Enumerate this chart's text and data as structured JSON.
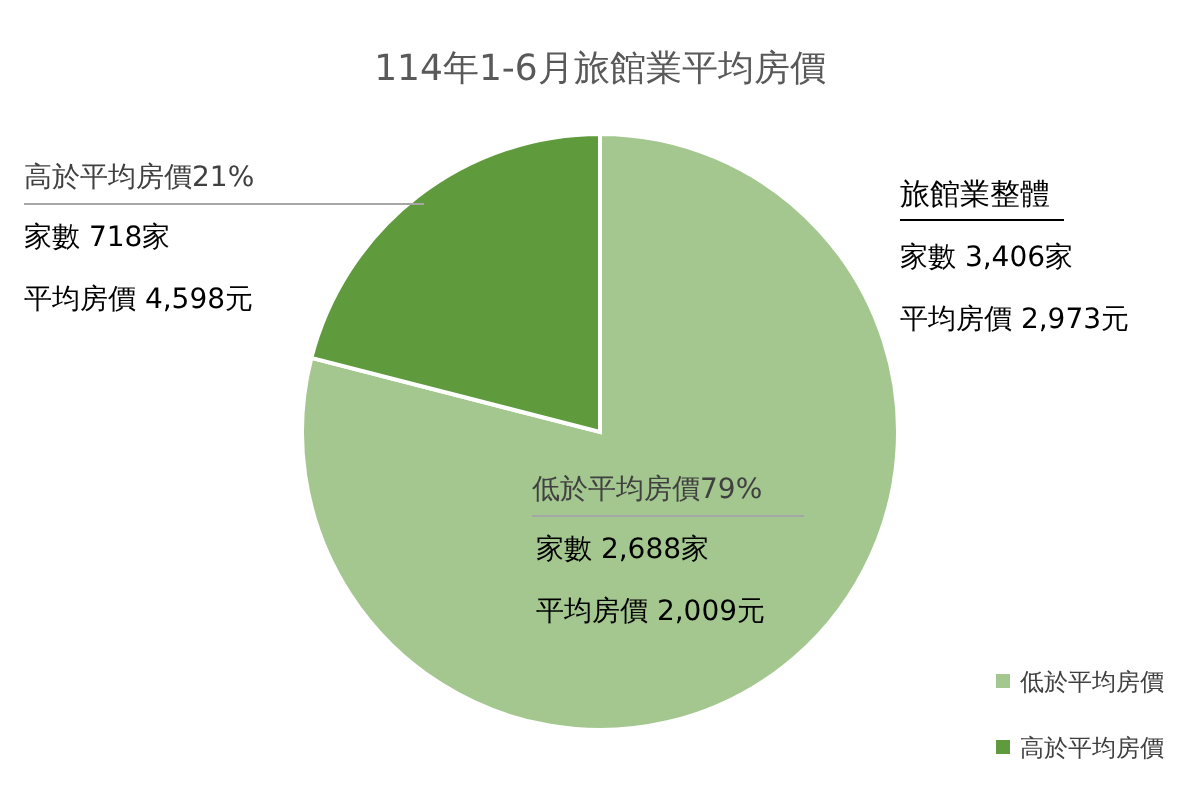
{
  "chart_data": {
    "type": "pie",
    "title": "114年1-6月旅館業平均房價",
    "categories": [
      "低於平均房價",
      "高於平均房價"
    ],
    "values": [
      79,
      21
    ],
    "colors": [
      "#a3c78f",
      "#5f9b3c"
    ],
    "value_labels": [
      "低於平均房價79%",
      "高於平均房價21%"
    ],
    "annotations": [
      "家數 2,688家",
      "平均房價 2,009元",
      "家數 718家",
      "平均房價 4,598元",
      "旅館業整體",
      "家數 3,406家",
      "平均房價 2,973元"
    ],
    "legend": "bottom right"
  }
}
